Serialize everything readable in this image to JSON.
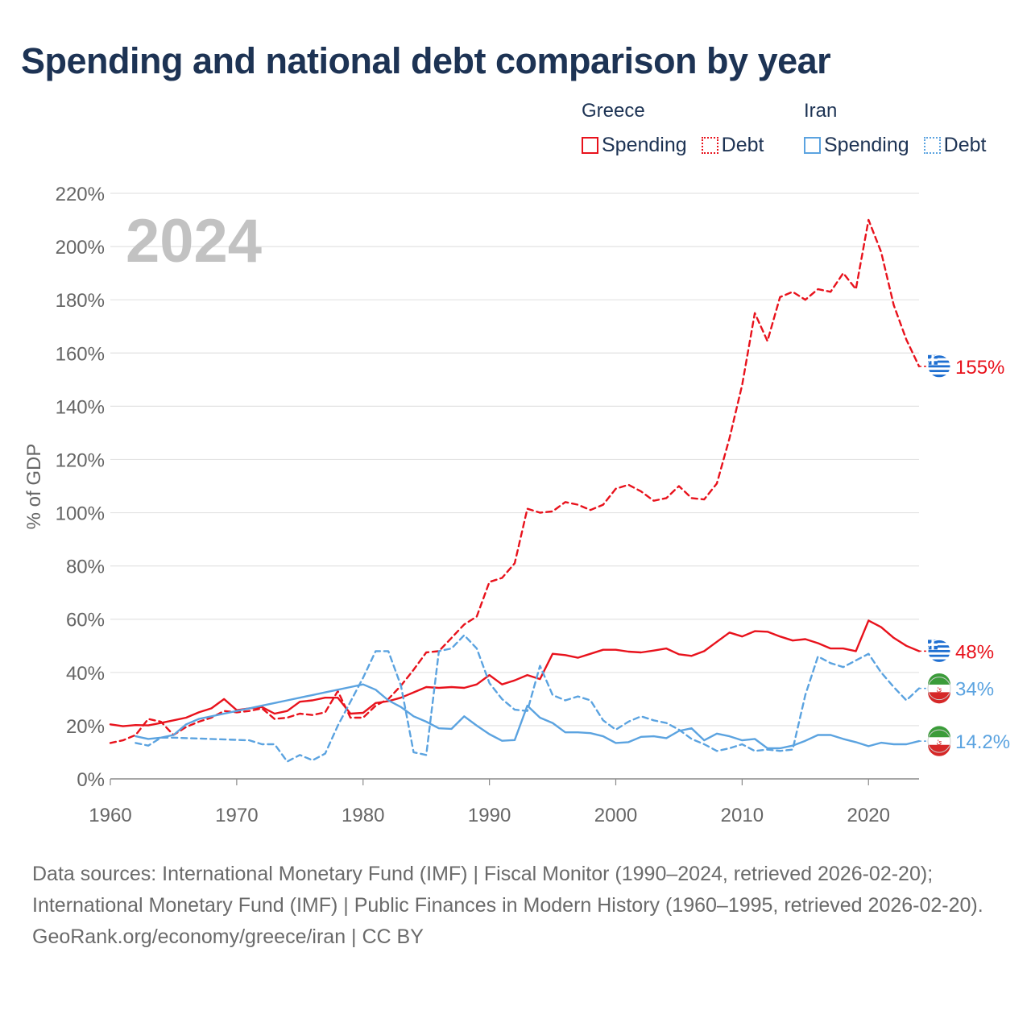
{
  "title": "Spending and national debt comparison by year",
  "year_watermark": "2024",
  "legend": {
    "greece": {
      "title": "Greece",
      "spending": "Spending",
      "debt": "Debt",
      "color": "#e8121c"
    },
    "iran": {
      "title": "Iran",
      "spending": "Spending",
      "debt": "Debt",
      "color": "#5ba3e0"
    }
  },
  "end_labels": {
    "greece_debt": "155%",
    "greece_spending": "48%",
    "iran_debt": "34%",
    "iran_spending": "14.2%"
  },
  "footer": {
    "sources": "Data sources: International Monetary Fund (IMF) | Fiscal Monitor (1990–2024, retrieved 2026-02-20); International Monetary Fund (IMF) | Public Finances in Modern History (1960–1995, retrieved 2026-02-20).",
    "credit": "GeoRank.org/economy/greece/iran | CC BY"
  },
  "chart_data": {
    "type": "line",
    "title": "Spending and national debt comparison by year",
    "xlabel": "",
    "ylabel": "% of GDP",
    "xlim": [
      1960,
      2024
    ],
    "ylim": [
      0,
      220
    ],
    "x_ticks": [
      1960,
      1970,
      1980,
      1990,
      2000,
      2010,
      2020
    ],
    "x_tick_labels": [
      "1960",
      "1970",
      "1980",
      "1990",
      "2000",
      "2010",
      "2020"
    ],
    "y_ticks": [
      0,
      20,
      40,
      60,
      80,
      100,
      120,
      140,
      160,
      180,
      200,
      220
    ],
    "y_tick_labels": [
      "0%",
      "20%",
      "40%",
      "60%",
      "80%",
      "100%",
      "120%",
      "140%",
      "160%",
      "180%",
      "200%",
      "220%"
    ],
    "grid": true,
    "series": [
      {
        "name": "Greece Spending",
        "color": "#e8121c",
        "dash": false,
        "x": [
          1960,
          1961,
          1962,
          1963,
          1964,
          1965,
          1966,
          1967,
          1968,
          1969,
          1970,
          1971,
          1972,
          1973,
          1974,
          1975,
          1976,
          1977,
          1978,
          1979,
          1980,
          1981,
          1982,
          1983,
          1984,
          1985,
          1986,
          1987,
          1988,
          1989,
          1990,
          1991,
          1992,
          1993,
          1994,
          1995,
          1996,
          1997,
          1998,
          1999,
          2000,
          2001,
          2002,
          2003,
          2004,
          2005,
          2006,
          2007,
          2008,
          2009,
          2010,
          2011,
          2012,
          2013,
          2014,
          2015,
          2016,
          2017,
          2018,
          2019,
          2020,
          2021,
          2022,
          2023,
          2024
        ],
        "values": [
          20.5,
          19.8,
          20.2,
          20.1,
          21.0,
          22.0,
          23.0,
          25.0,
          26.5,
          30.0,
          25.8,
          26.5,
          27.0,
          24.5,
          25.5,
          29.0,
          29.5,
          30.5,
          30.5,
          24.5,
          24.8,
          28.5,
          29.2,
          30.5,
          32.5,
          34.5,
          34.2,
          34.5,
          34.2,
          35.5,
          39.0,
          35.5,
          37.0,
          39.0,
          37.5,
          47.0,
          46.5,
          45.5,
          47.0,
          48.5,
          48.5,
          47.8,
          47.5,
          48.2,
          49.0,
          46.8,
          46.2,
          48.0,
          51.5,
          55.0,
          53.5,
          55.5,
          55.3,
          53.5,
          52.0,
          52.5,
          51.0,
          49.0,
          49.0,
          48.0,
          59.5,
          57.0,
          53.0,
          50.0,
          48.0
        ]
      },
      {
        "name": "Greece Debt",
        "color": "#e8121c",
        "dash": true,
        "x": [
          1960,
          1961,
          1962,
          1963,
          1964,
          1965,
          1966,
          1967,
          1968,
          1969,
          1970,
          1971,
          1972,
          1973,
          1974,
          1975,
          1976,
          1977,
          1978,
          1979,
          1980,
          1981,
          1982,
          1983,
          1984,
          1985,
          1986,
          1987,
          1988,
          1989,
          1990,
          1991,
          1992,
          1993,
          1994,
          1995,
          1996,
          1997,
          1998,
          1999,
          2000,
          2001,
          2002,
          2003,
          2004,
          2005,
          2006,
          2007,
          2008,
          2009,
          2010,
          2011,
          2012,
          2013,
          2014,
          2015,
          2016,
          2017,
          2018,
          2019,
          2020,
          2021,
          2022,
          2023,
          2024
        ],
        "values": [
          13.5,
          14.5,
          16.5,
          22.5,
          21.5,
          16.5,
          19.5,
          21.5,
          23.0,
          25.5,
          25.0,
          25.5,
          26.5,
          22.5,
          23.0,
          24.5,
          24.0,
          25.0,
          33.0,
          23.0,
          23.0,
          27.5,
          30.0,
          35.0,
          41.0,
          47.5,
          48.0,
          53.0,
          58.0,
          61.0,
          74.0,
          75.5,
          81.0,
          101.5,
          100.0,
          100.5,
          104.0,
          103.0,
          101.0,
          103.0,
          109.0,
          110.5,
          108.0,
          104.5,
          105.5,
          110.0,
          105.5,
          105.0,
          111.0,
          128.0,
          148.0,
          175.0,
          164.5,
          181.0,
          183.0,
          180.0,
          184.0,
          183.0,
          190.0,
          184.0,
          210.0,
          198.0,
          178.0,
          165.0,
          155.0
        ]
      },
      {
        "name": "Iran Spending",
        "color": "#5ba3e0",
        "dash": false,
        "x": [
          1962,
          1963,
          1964,
          1965,
          1966,
          1967,
          1968,
          1969,
          1970,
          1971,
          1972,
          1973,
          1974,
          1975,
          1976,
          1977,
          1978,
          1979,
          1980,
          1981,
          1982,
          1983,
          1984,
          1985,
          1986,
          1987,
          1988,
          1989,
          1990,
          1991,
          1992,
          1993,
          1994,
          1995,
          1996,
          1997,
          1998,
          1999,
          2000,
          2001,
          2002,
          2003,
          2004,
          2005,
          2006,
          2007,
          2008,
          2009,
          2010,
          2011,
          2012,
          2013,
          2014,
          2015,
          2016,
          2017,
          2018,
          2019,
          2020,
          2021,
          2022,
          2023,
          2024
        ],
        "values": [
          16.0,
          15.0,
          15.5,
          16.5,
          20.5,
          22.5,
          23.5,
          24.5,
          25.5,
          26.5,
          27.5,
          28.5,
          29.5,
          30.5,
          31.5,
          32.5,
          33.5,
          34.5,
          35.5,
          33.5,
          29.5,
          27.0,
          23.5,
          21.5,
          19.0,
          18.8,
          23.5,
          20.0,
          16.8,
          14.3,
          14.6,
          27.5,
          23.0,
          21.0,
          17.5,
          17.5,
          17.2,
          16.0,
          13.5,
          13.8,
          15.8,
          16.0,
          15.3,
          18.0,
          19.0,
          14.5,
          17.0,
          16.0,
          14.5,
          15.0,
          11.5,
          11.5,
          12.5,
          14.3,
          16.5,
          16.5,
          15.0,
          13.8,
          12.3,
          13.6,
          13.0,
          13.0,
          14.2
        ]
      },
      {
        "name": "Iran Debt",
        "color": "#5ba3e0",
        "dash": true,
        "x": [
          1962,
          1963,
          1964,
          1965,
          1971,
          1972,
          1973,
          1974,
          1975,
          1976,
          1977,
          1978,
          1979,
          1980,
          1981,
          1982,
          1983,
          1984,
          1985,
          1986,
          1987,
          1988,
          1989,
          1990,
          1991,
          1992,
          1993,
          1994,
          1995,
          1996,
          1997,
          1998,
          1999,
          2000,
          2001,
          2002,
          2003,
          2004,
          2005,
          2006,
          2007,
          2008,
          2009,
          2010,
          2011,
          2012,
          2013,
          2014,
          2015,
          2016,
          2017,
          2018,
          2019,
          2020,
          2021,
          2022,
          2023,
          2024
        ],
        "values": [
          13.5,
          12.5,
          15.5,
          15.5,
          14.5,
          13.0,
          13.0,
          6.5,
          9.0,
          7.0,
          9.5,
          20.0,
          29.0,
          38.0,
          48.0,
          48.0,
          35.0,
          10.0,
          9.0,
          48.0,
          49.0,
          54.0,
          49.0,
          36.0,
          30.0,
          26.0,
          25.5,
          42.5,
          31.5,
          29.5,
          31.0,
          29.5,
          22.0,
          18.5,
          21.5,
          23.5,
          22.0,
          21.0,
          18.5,
          15.0,
          13.0,
          10.5,
          11.5,
          13.0,
          10.5,
          11.0,
          10.5,
          11.0,
          31.5,
          46.0,
          43.5,
          42.0,
          44.5,
          47.0,
          40.0,
          34.5,
          29.5,
          34.0
        ]
      }
    ],
    "end_labels": [
      {
        "series": "Greece Debt",
        "value": 155,
        "text": "155%"
      },
      {
        "series": "Greece Spending",
        "value": 48,
        "text": "48%"
      },
      {
        "series": "Iran Debt",
        "value": 34,
        "text": "34%"
      },
      {
        "series": "Iran Spending",
        "value": 14.2,
        "text": "14.2%"
      }
    ]
  }
}
